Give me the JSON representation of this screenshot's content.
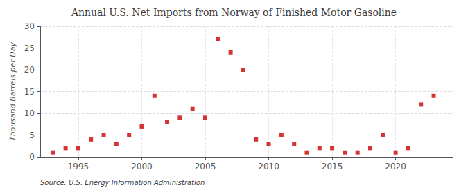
{
  "chart_data": {
    "type": "scatter",
    "title": "Annual U.S. Net Imports from Norway of Finished Motor Gasoline",
    "ylabel": "Thousand Barrels per Day",
    "annotation": "Source: U.S. Energy Information Administration",
    "x": [
      1993,
      1994,
      1995,
      1996,
      1997,
      1998,
      1999,
      2000,
      2001,
      2002,
      2003,
      2004,
      2005,
      2006,
      2007,
      2008,
      2009,
      2010,
      2011,
      2012,
      2013,
      2014,
      2015,
      2016,
      2017,
      2018,
      2019,
      2020,
      2021,
      2022,
      2023
    ],
    "values": [
      1,
      2,
      2,
      4,
      5,
      3,
      5,
      7,
      14,
      8,
      9,
      11,
      9,
      27,
      24,
      20,
      4,
      3,
      5,
      3,
      1,
      2,
      2,
      1,
      1,
      2,
      5,
      1,
      2,
      12,
      14
    ],
    "color": "#cc0000",
    "marker": "square",
    "xlim": [
      1992,
      2024.5
    ],
    "xticks": [
      1995,
      2000,
      2005,
      2010,
      2015,
      2020
    ],
    "ylim": [
      0,
      30
    ],
    "yticks": [
      0,
      5,
      10,
      15,
      20,
      25,
      30
    ],
    "grid": true
  }
}
